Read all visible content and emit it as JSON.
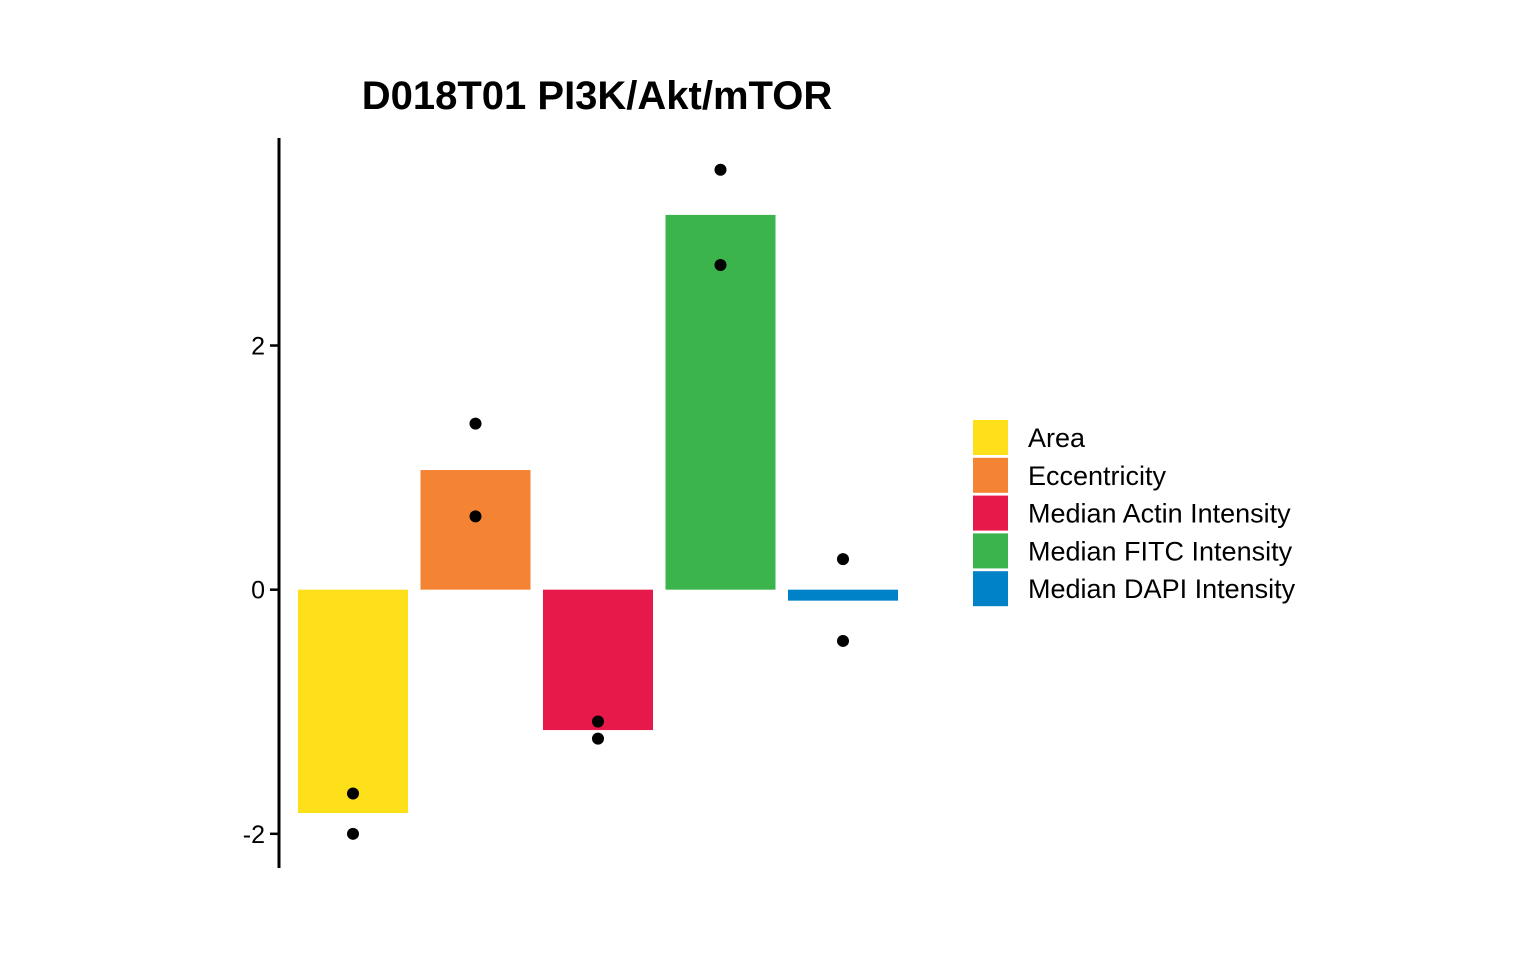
{
  "chart_data": {
    "type": "bar",
    "title": "D018T01 PI3K/Akt/mTOR",
    "xlabel": "",
    "ylabel": "",
    "ylim": [
      -2.28,
      3.7
    ],
    "yticks": [
      -2,
      0,
      2
    ],
    "grid": false,
    "legend_position": "right",
    "categories": [
      "Area",
      "Eccentricity",
      "Median Actin Intensity",
      "Median FITC Intensity",
      "Median DAPI Intensity"
    ],
    "values": [
      -1.83,
      0.98,
      -1.15,
      3.07,
      -0.09
    ],
    "replicates": [
      [
        -1.67,
        -2.0
      ],
      [
        1.36,
        0.6
      ],
      [
        -1.08,
        -1.22
      ],
      [
        3.44,
        2.66
      ],
      [
        0.25,
        -0.42
      ]
    ],
    "colors": [
      "#FDE019",
      "#F48333",
      "#E6194A",
      "#3CB44C",
      "#0082C8"
    ]
  }
}
